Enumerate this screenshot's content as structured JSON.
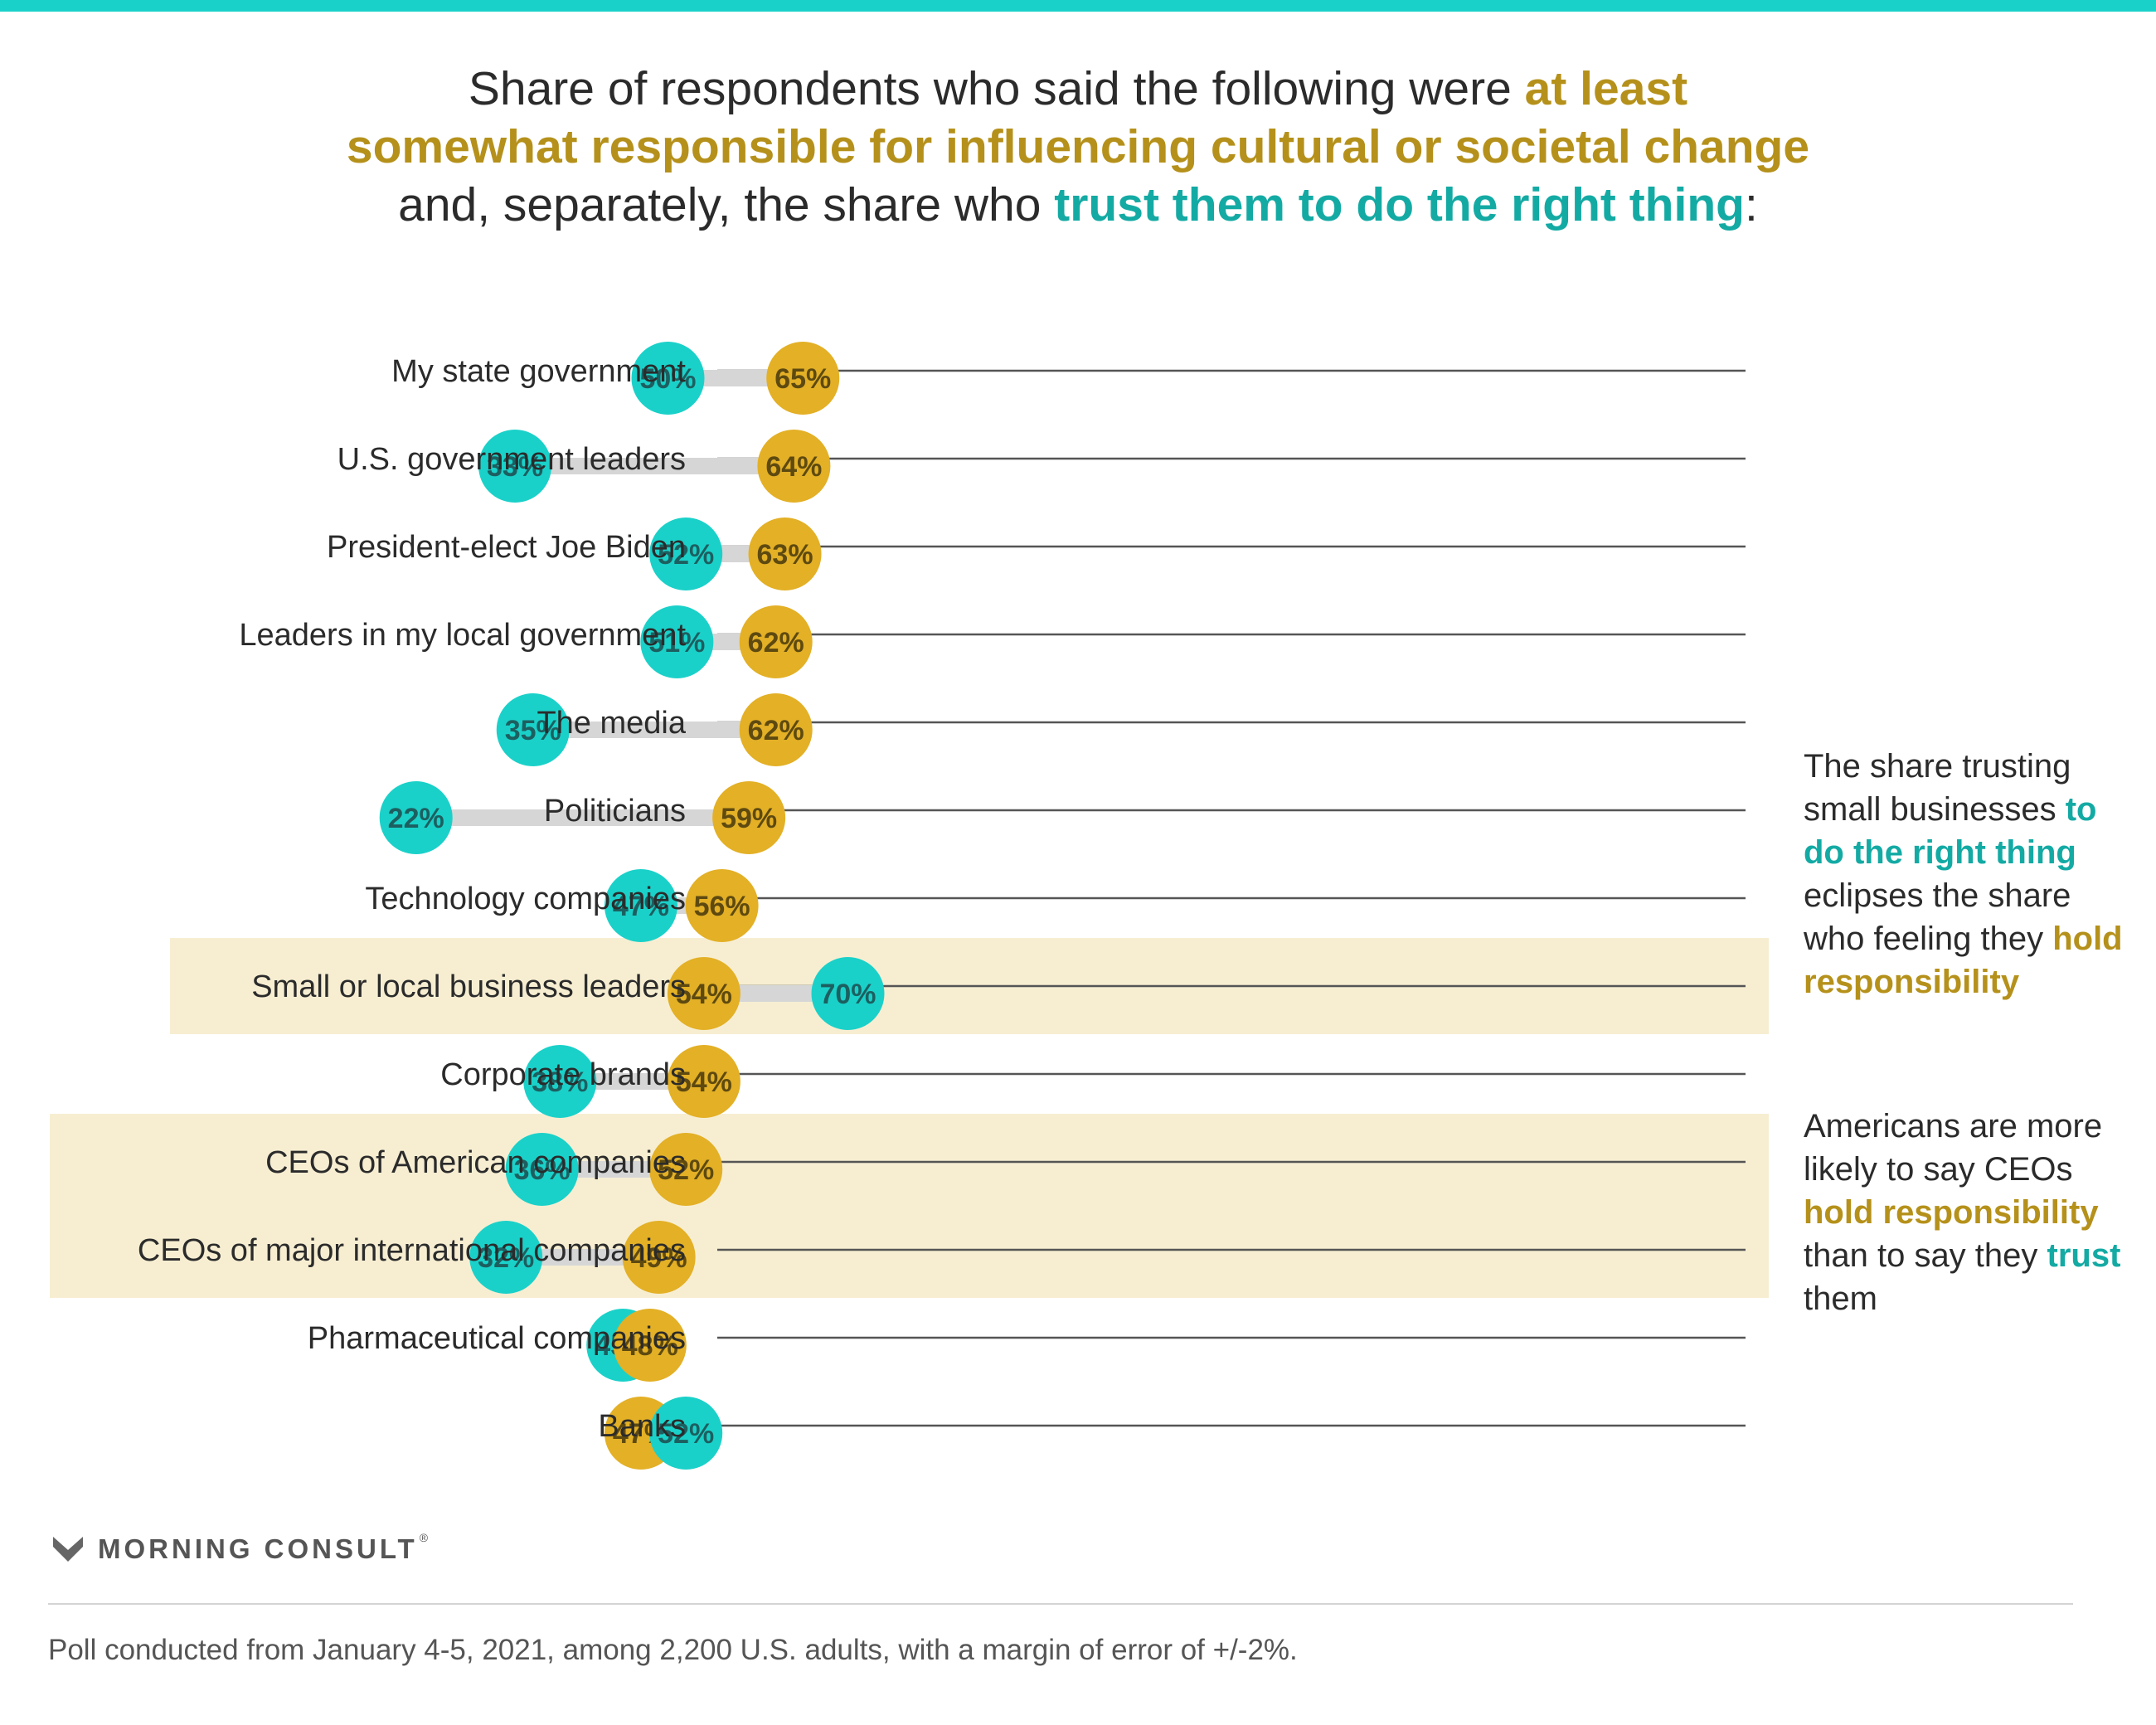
{
  "title": {
    "line1_a": "Share of respondents who said the following were ",
    "line1_b": "at least",
    "line2": "somewhat responsible for influencing cultural or societal change",
    "line3_a": "and, separately, the share who ",
    "line3_b": "trust them to do the right thing",
    "line3_c": ":"
  },
  "colors": {
    "trust": "#1ad1c9",
    "responsible": "#e3b026",
    "connector": "#d6d6d6",
    "highlight": "#f7eed2",
    "gold_text": "#b5911b",
    "teal_text": "#14aaa4",
    "top_bar": "#1ad1c9"
  },
  "chart_data": {
    "type": "dumbbell",
    "unit": "%",
    "xlim": [
      0,
      100
    ],
    "series": [
      {
        "key": "trust",
        "name": "trust them to do the right thing",
        "color": "#1ad1c9"
      },
      {
        "key": "responsible",
        "name": "at least somewhat responsible for influencing cultural or societal change",
        "color": "#e3b026"
      }
    ],
    "rows": [
      {
        "label": "My state government",
        "trust": 50,
        "responsible": 65
      },
      {
        "label": "U.S. government leaders",
        "trust": 33,
        "responsible": 64
      },
      {
        "label": "President-elect Joe Biden",
        "trust": 52,
        "responsible": 63
      },
      {
        "label": "Leaders in my local government",
        "trust": 51,
        "responsible": 62
      },
      {
        "label": "The media",
        "trust": 35,
        "responsible": 62
      },
      {
        "label": "Politicians",
        "trust": 22,
        "responsible": 59
      },
      {
        "label": "Technology companies",
        "trust": 47,
        "responsible": 56
      },
      {
        "label": "Small or local business leaders",
        "trust": 70,
        "responsible": 54
      },
      {
        "label": "Corporate brands",
        "trust": 38,
        "responsible": 54
      },
      {
        "label": "CEOs of American companies",
        "trust": 36,
        "responsible": 52
      },
      {
        "label": "CEOs of major international companies",
        "trust": 32,
        "responsible": 49
      },
      {
        "label": "Pharmaceutical companies",
        "trust": 45,
        "responsible": 48
      },
      {
        "label": "Banks",
        "trust": 52,
        "responsible": 47
      }
    ],
    "highlight_groups": [
      [
        "Small or local business leaders"
      ],
      [
        "CEOs of American companies",
        "CEOs of major international companies"
      ]
    ]
  },
  "annotations": {
    "a1": {
      "t1": "The share trusting small businesses ",
      "t2": "to do the right thing",
      "t3": " eclipses the share who feeling they ",
      "t4": "hold responsibility"
    },
    "a2": {
      "t1": "Americans are more likely to say CEOs ",
      "t2": "hold responsibility",
      "t3": " than to say they ",
      "t4": "trust",
      "t5": " them"
    }
  },
  "logo": {
    "name": "MORNING CONSULT",
    "mark": "®"
  },
  "footnote": "Poll conducted from January 4-5, 2021, among 2,200 U.S. adults, with a margin of error of +/-2%."
}
